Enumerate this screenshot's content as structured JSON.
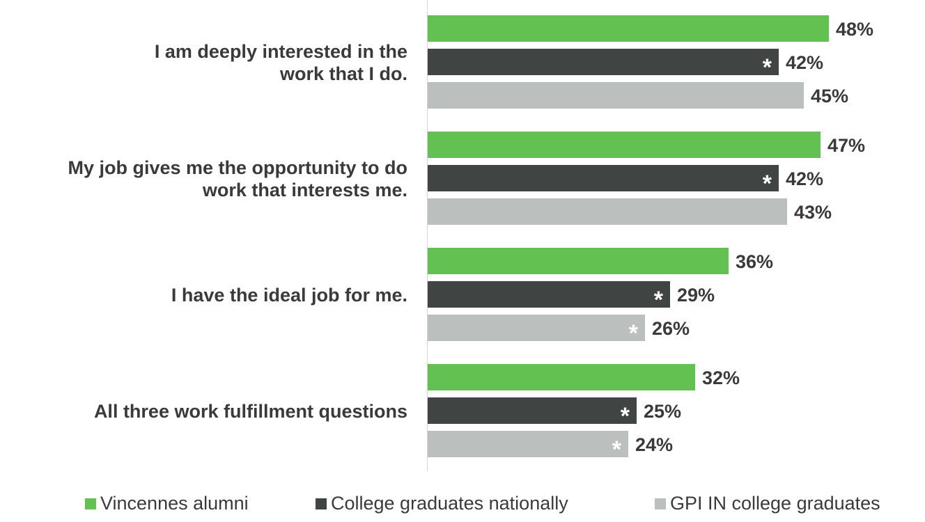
{
  "chart_data": {
    "type": "bar",
    "orientation": "horizontal",
    "categories": [
      [
        "I am deeply interested in the",
        "work that I do."
      ],
      [
        "My job gives me the opportunity to do",
        "work that interests me."
      ],
      [
        "I have the ideal job for me."
      ],
      [
        "All three work fulfillment questions"
      ]
    ],
    "series": [
      {
        "name": "Vincennes alumni",
        "color": "#62c150",
        "values": [
          48,
          47,
          36,
          32
        ],
        "labels": [
          "48%",
          "47%",
          "36%",
          "32%"
        ],
        "significant": [
          false,
          false,
          false,
          false
        ]
      },
      {
        "name": "College graduates nationally",
        "color": "#404443",
        "values": [
          42,
          42,
          29,
          25
        ],
        "labels": [
          "42%",
          "42%",
          "29%",
          "25%"
        ],
        "significant": [
          true,
          true,
          true,
          true
        ]
      },
      {
        "name": "GPI IN college graduates",
        "color": "#bbbfbe",
        "values": [
          45,
          43,
          26,
          24
        ],
        "labels": [
          "45%",
          "43%",
          "26%",
          "24%"
        ],
        "significant": [
          false,
          false,
          true,
          true
        ]
      }
    ],
    "significance_marker": "*",
    "legend": "bottom",
    "grid": false,
    "xlim": [
      0,
      100
    ]
  }
}
